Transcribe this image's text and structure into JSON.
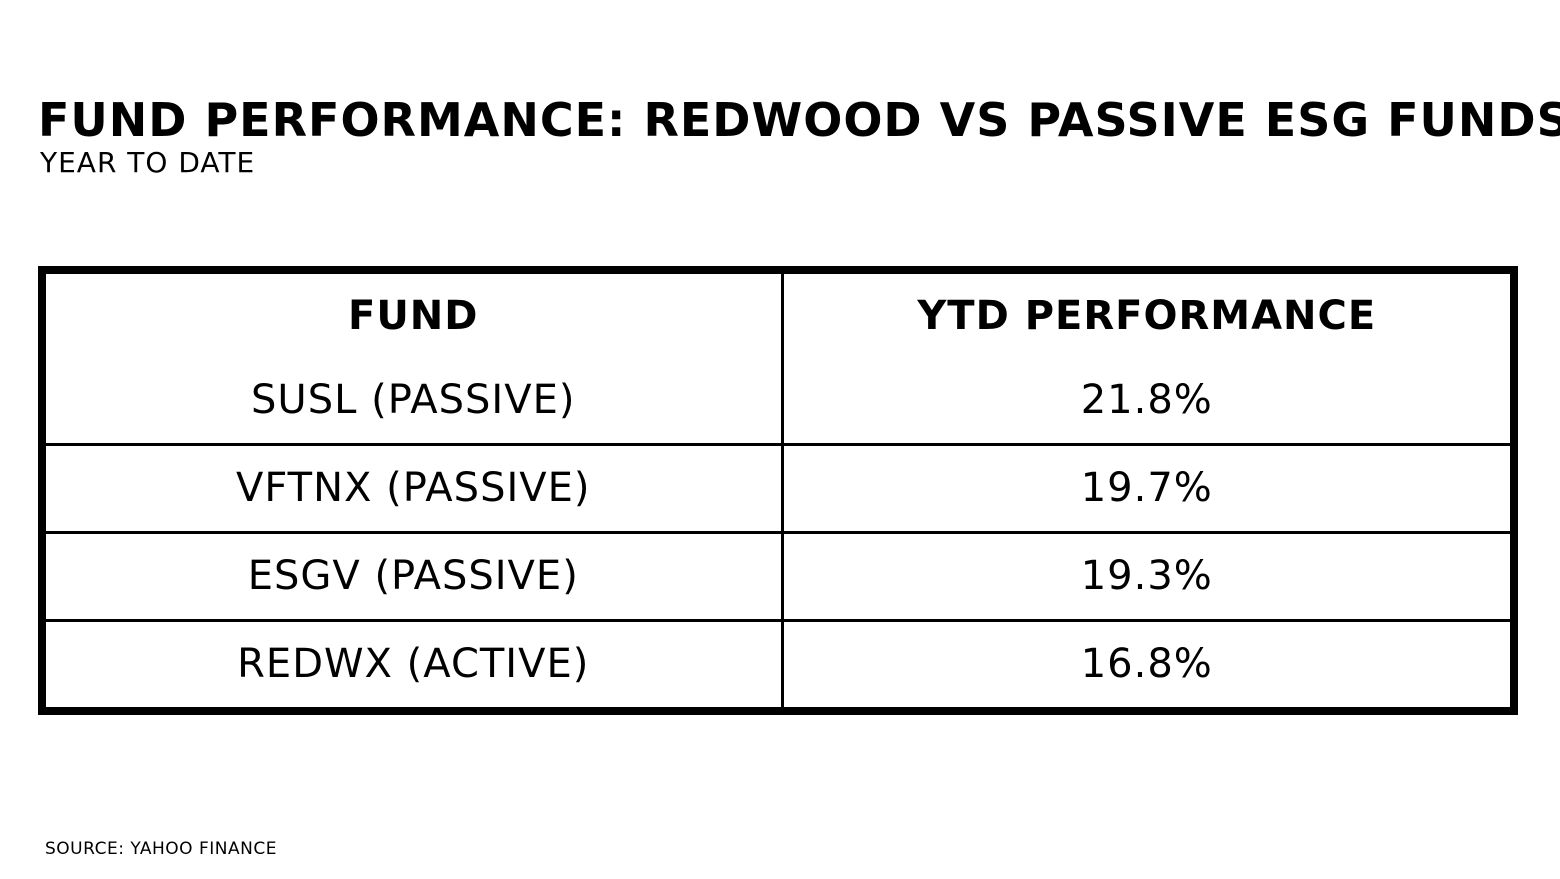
{
  "chart_data": {
    "type": "table",
    "title": "FUND PERFORMANCE: REDWOOD VS PASSIVE ESG FUNDS",
    "subtitle": "YEAR TO DATE",
    "columns": [
      "FUND",
      "YTD PERFORMANCE"
    ],
    "rows": [
      {
        "fund": "SUSL (PASSIVE)",
        "ytd": "21.8%"
      },
      {
        "fund": "VFTNX (PASSIVE)",
        "ytd": "19.7%"
      },
      {
        "fund": "ESGV (PASSIVE)",
        "ytd": "19.3%"
      },
      {
        "fund": "REDWX (ACTIVE)",
        "ytd": "16.8%"
      }
    ],
    "source": "SOURCE: YAHOO FINANCE"
  }
}
